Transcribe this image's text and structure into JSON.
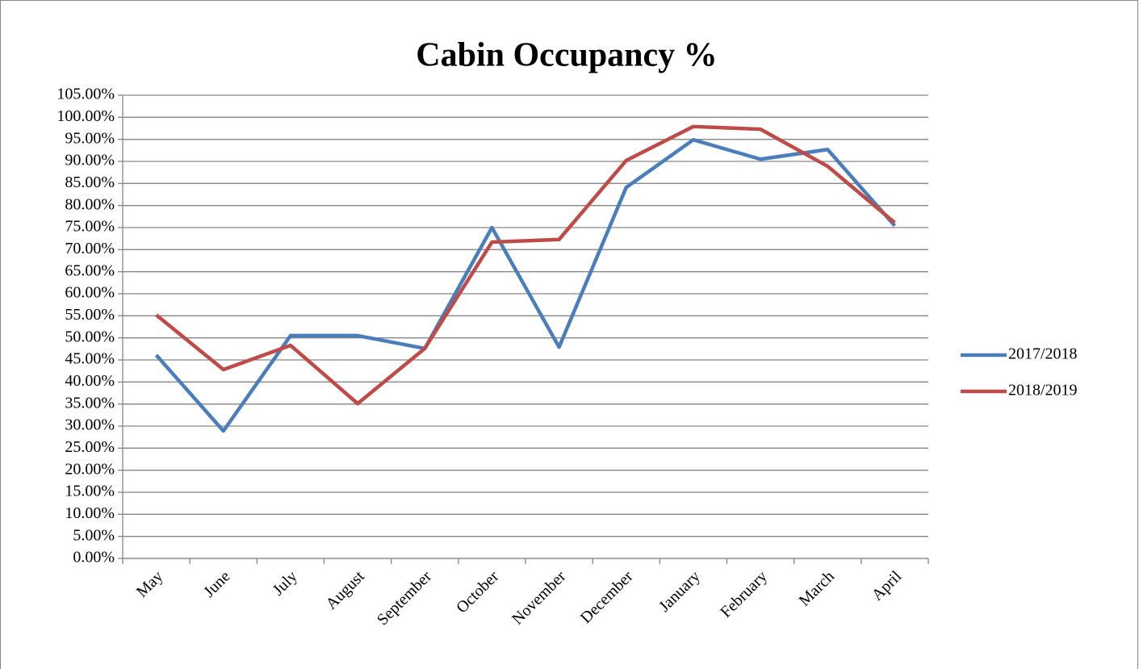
{
  "chart_data": {
    "type": "line",
    "title": "Cabin Occupancy %",
    "categories": [
      "May",
      "June",
      "July",
      "August",
      "September",
      "October",
      "November",
      "December",
      "January",
      "February",
      "March",
      "April"
    ],
    "series": [
      {
        "name": "2017/2018",
        "color": "#4a7ebb",
        "values": [
          46.1,
          28.9,
          50.5,
          50.5,
          47.6,
          75.0,
          47.9,
          84.1,
          94.9,
          90.5,
          92.7,
          75.4
        ]
      },
      {
        "name": "2018/2019",
        "color": "#be4b48",
        "values": [
          55.2,
          42.8,
          48.3,
          35.1,
          47.6,
          71.7,
          72.3,
          90.2,
          97.9,
          97.3,
          88.9,
          76.1
        ]
      }
    ],
    "ylim": [
      0,
      105
    ],
    "yticks": [
      {
        "value": 0,
        "label": "0.00%"
      },
      {
        "value": 5,
        "label": "5.00%"
      },
      {
        "value": 10,
        "label": "10.00%"
      },
      {
        "value": 15,
        "label": "15.00%"
      },
      {
        "value": 20,
        "label": "20.00%"
      },
      {
        "value": 25,
        "label": "25.00%"
      },
      {
        "value": 30,
        "label": "30.00%"
      },
      {
        "value": 35,
        "label": "35.00%"
      },
      {
        "value": 40,
        "label": "40.00%"
      },
      {
        "value": 45,
        "label": "45.00%"
      },
      {
        "value": 50,
        "label": "50.00%"
      },
      {
        "value": 55,
        "label": "55.00%"
      },
      {
        "value": 60,
        "label": "60.00%"
      },
      {
        "value": 65,
        "label": "65.00%"
      },
      {
        "value": 70,
        "label": "70.00%"
      },
      {
        "value": 75,
        "label": "75.00%"
      },
      {
        "value": 80,
        "label": "80.00%"
      },
      {
        "value": 85,
        "label": "85.00%"
      },
      {
        "value": 90,
        "label": "90.00%"
      },
      {
        "value": 95,
        "label": "95.00%"
      },
      {
        "value": 100,
        "label": "100.00%"
      },
      {
        "value": 105,
        "label": "105.00%"
      }
    ],
    "grid": true,
    "legend": "right"
  }
}
